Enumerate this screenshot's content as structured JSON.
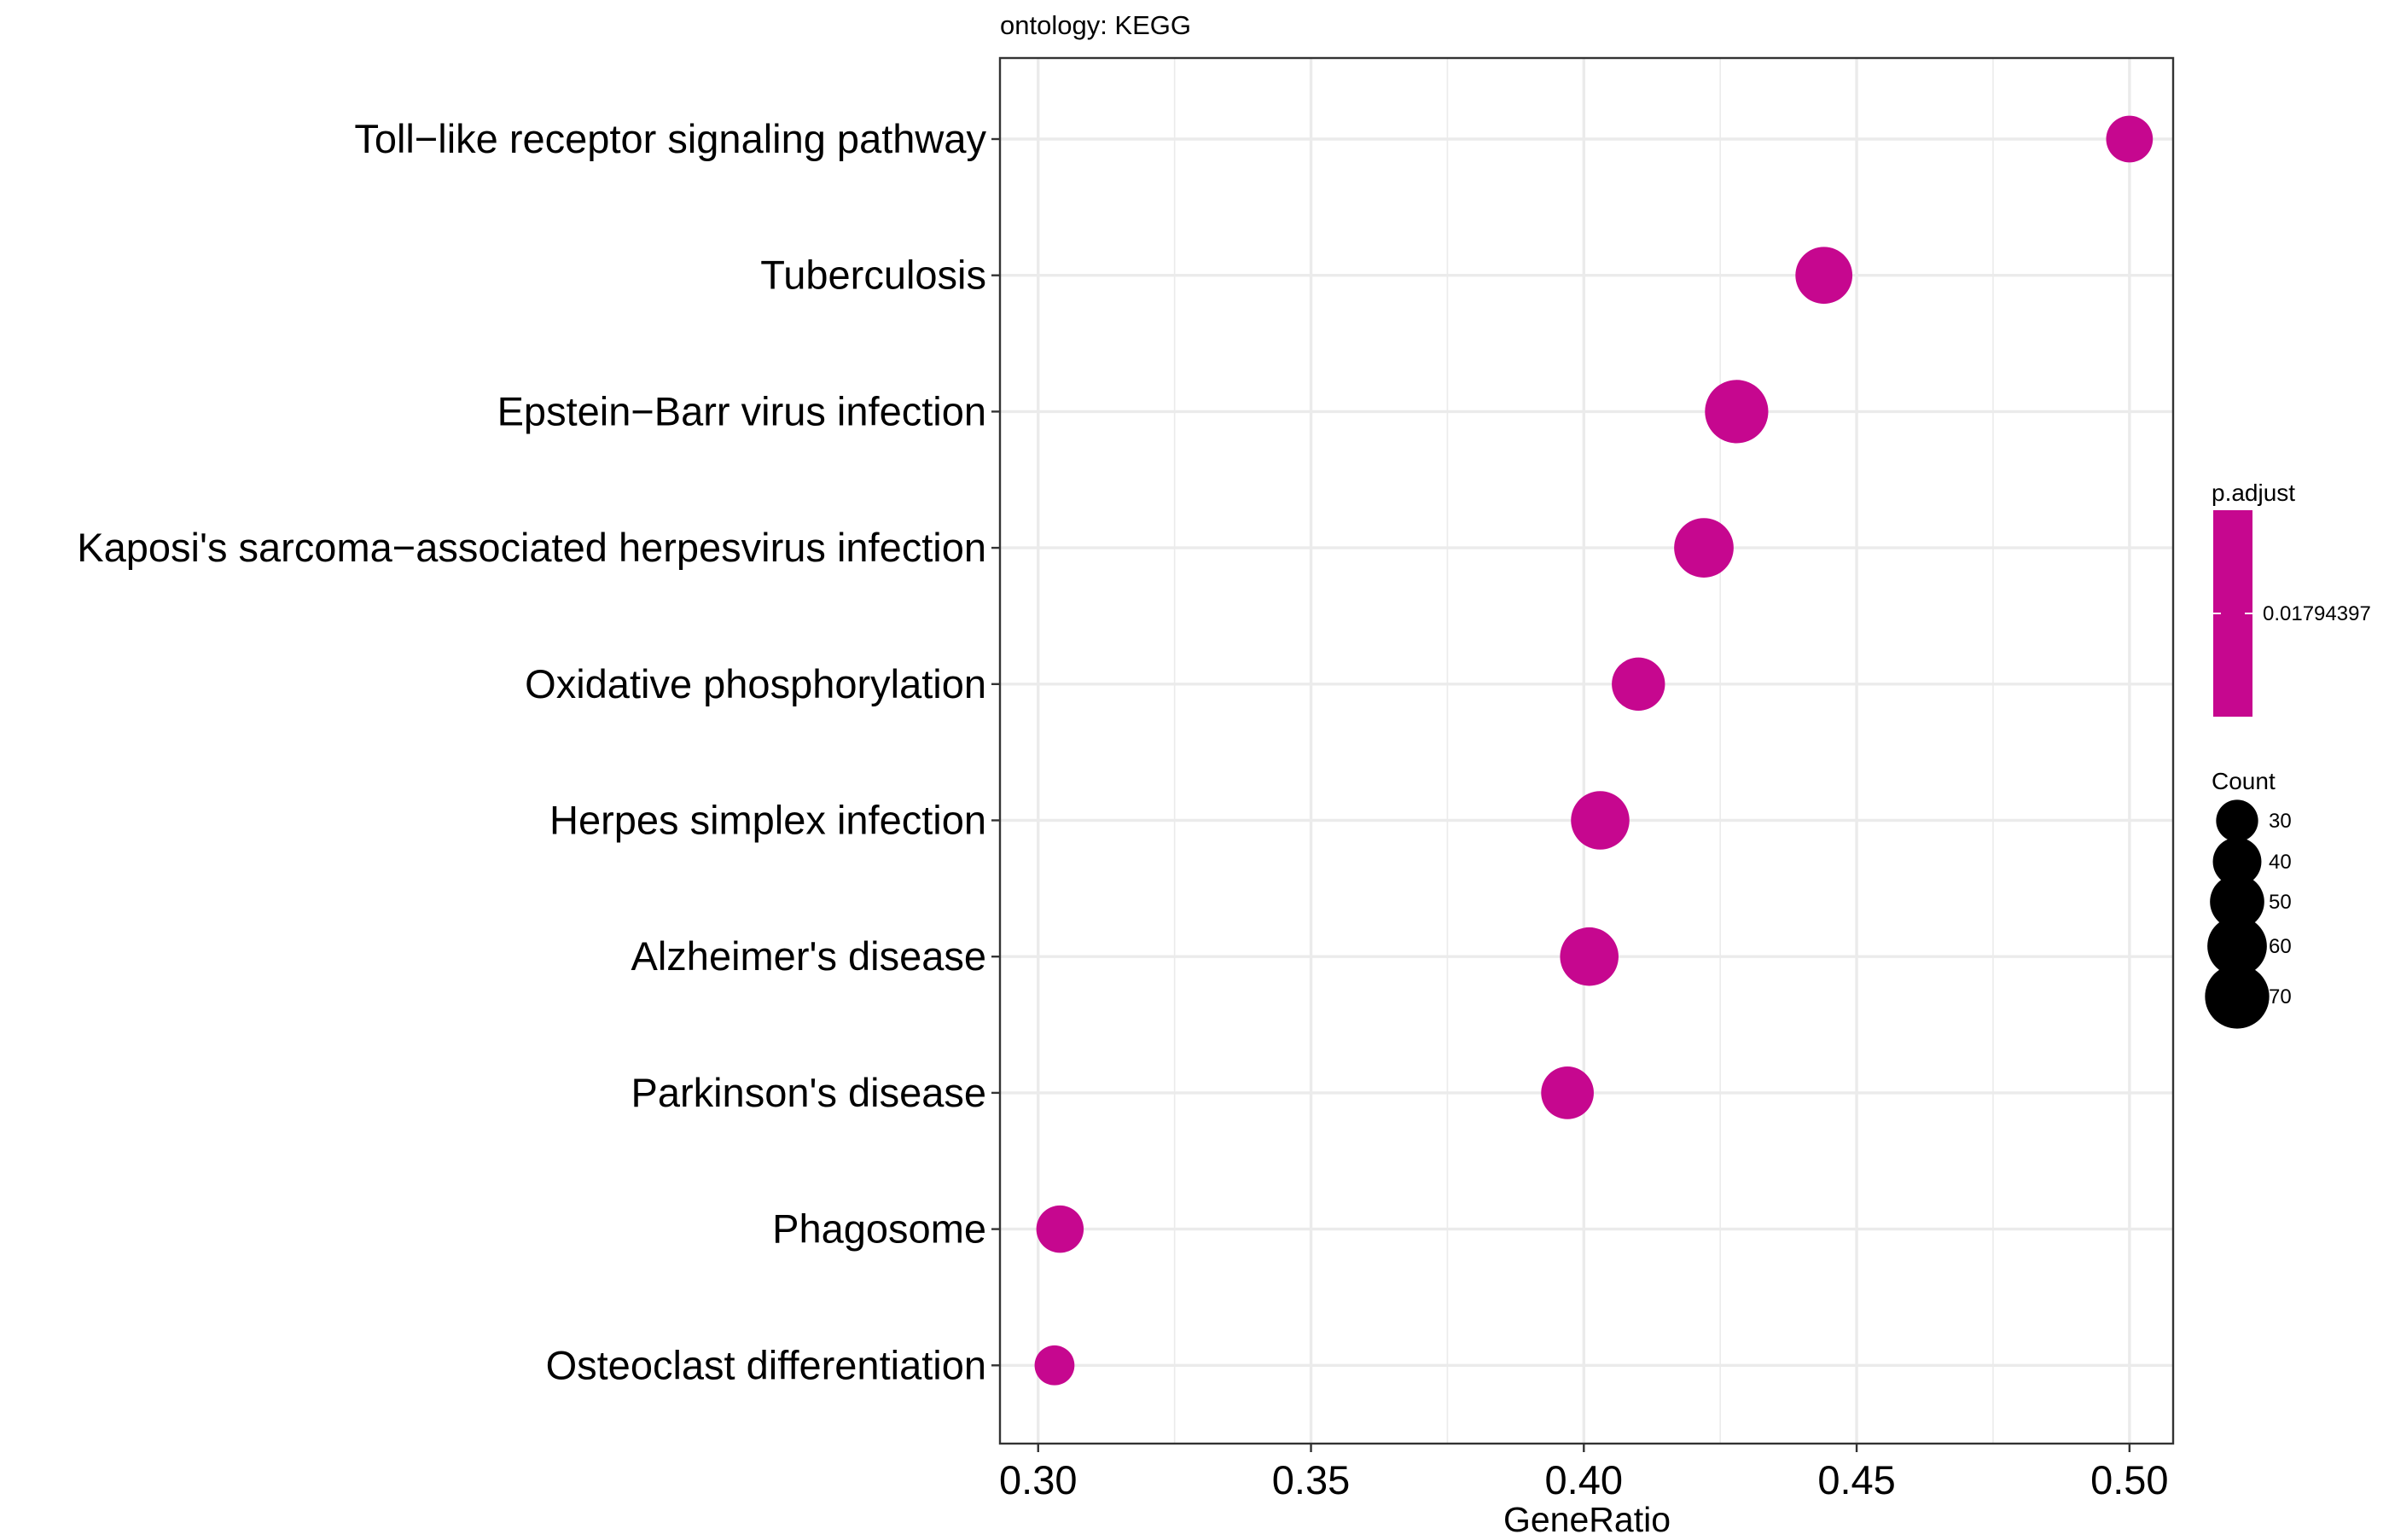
{
  "chart_data": {
    "type": "scatter",
    "title": "ontology: KEGG",
    "xlabel": "GeneRatio",
    "ylabel": "",
    "xlim": [
      0.293,
      0.508
    ],
    "xticks": [
      0.3,
      0.35,
      0.4,
      0.45,
      0.5
    ],
    "xtick_labels": [
      "0.30",
      "0.35",
      "0.40",
      "0.45",
      "0.50"
    ],
    "grid": true,
    "legend_position": "right",
    "point_color": "#C6078F",
    "categories": [
      "Toll−like receptor signaling pathway",
      "Tuberculosis",
      "Epstein−Barr virus infection",
      "Kaposi's sarcoma−associated herpesvirus infection",
      "Oxidative phosphorylation",
      "Herpes simplex infection",
      "Alzheimer's disease",
      "Parkinson's disease",
      "Phagosome",
      "Osteoclast differentiation"
    ],
    "gene_ratio": [
      0.5,
      0.444,
      0.428,
      0.422,
      0.41,
      0.403,
      0.401,
      0.397,
      0.304,
      0.303
    ],
    "count": [
      37,
      55,
      68,
      60,
      48,
      58,
      58,
      47,
      38,
      27
    ],
    "color_legend": {
      "title": "p.adjust",
      "label": "0.01794397",
      "color": "#C6078F"
    },
    "size_legend": {
      "title": "Count",
      "values": [
        30,
        40,
        50,
        60,
        70
      ],
      "labels": [
        "30",
        "40",
        "50",
        "60",
        "70"
      ]
    }
  }
}
